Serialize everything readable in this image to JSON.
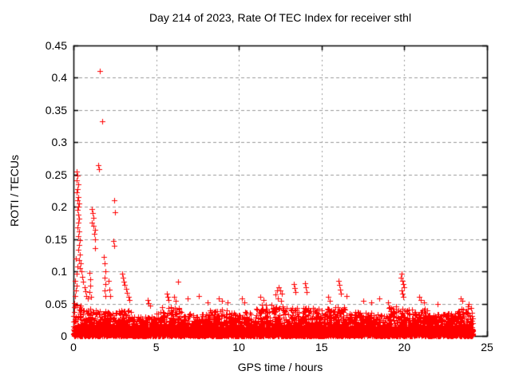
{
  "chart_data": {
    "type": "scatter",
    "title": "Day 214 of 2023, Rate Of TEC Index for receiver sthl",
    "xlabel": "GPS time / hours",
    "ylabel": "ROTI / TECUs",
    "xlim": [
      0,
      25
    ],
    "ylim": [
      0,
      0.45
    ],
    "grid": "dashed",
    "legend": "none",
    "grid_color": "#999999",
    "border_color": "#000000",
    "marker": {
      "shape": "plus",
      "color": "#ff0000",
      "size": 7
    },
    "xticks": {
      "values": [
        0,
        5,
        10,
        15,
        20,
        25
      ],
      "labels": [
        "0",
        "5",
        "10",
        "15",
        "20",
        "25"
      ]
    },
    "yticks": {
      "values": [
        0,
        0.05,
        0.1,
        0.15,
        0.2,
        0.25,
        0.3,
        0.35,
        0.4,
        0.45
      ],
      "labels": [
        "0",
        "0.05",
        "0.1",
        "0.15",
        "0.2",
        "0.25",
        "0.3",
        "0.35",
        "0.4",
        "0.45"
      ]
    },
    "series_name": "ROTI",
    "x_data_end": 24.15,
    "outlier_points": [
      [
        0.2,
        0.255
      ],
      [
        0.25,
        0.248
      ],
      [
        0.18,
        0.241
      ],
      [
        0.3,
        0.235
      ],
      [
        0.24,
        0.228
      ],
      [
        0.2,
        0.222
      ],
      [
        0.3,
        0.215
      ],
      [
        0.26,
        0.21
      ],
      [
        0.35,
        0.205
      ],
      [
        0.3,
        0.2
      ],
      [
        0.25,
        0.195
      ],
      [
        0.31,
        0.188
      ],
      [
        0.36,
        0.182
      ],
      [
        0.3,
        0.175
      ],
      [
        0.26,
        0.168
      ],
      [
        0.35,
        0.162
      ],
      [
        0.3,
        0.155
      ],
      [
        0.4,
        0.148
      ],
      [
        0.36,
        0.141
      ],
      [
        0.31,
        0.133
      ],
      [
        0.4,
        0.126
      ],
      [
        0.36,
        0.118
      ],
      [
        0.45,
        0.112
      ],
      [
        0.41,
        0.105
      ],
      [
        0.5,
        0.1
      ],
      [
        0.55,
        0.092
      ],
      [
        0.6,
        0.084
      ],
      [
        0.66,
        0.076
      ],
      [
        0.71,
        0.069
      ],
      [
        0.76,
        0.062
      ],
      [
        0.85,
        0.058
      ],
      [
        0.15,
        0.12
      ],
      [
        0.22,
        0.108
      ],
      [
        0.18,
        0.096
      ],
      [
        0.12,
        0.085
      ],
      [
        0.2,
        0.078
      ],
      [
        0.15,
        0.07
      ],
      [
        0.1,
        0.062
      ],
      [
        0.95,
        0.098
      ],
      [
        1.0,
        0.088
      ],
      [
        1.02,
        0.078
      ],
      [
        0.98,
        0.068
      ],
      [
        1.05,
        0.06
      ],
      [
        1.1,
        0.197
      ],
      [
        1.15,
        0.19
      ],
      [
        1.2,
        0.183
      ],
      [
        1.12,
        0.176
      ],
      [
        1.22,
        0.17
      ],
      [
        1.3,
        0.165
      ],
      [
        1.25,
        0.158
      ],
      [
        1.3,
        0.15
      ],
      [
        1.28,
        0.136
      ],
      [
        1.6,
        0.41
      ],
      [
        1.75,
        0.333
      ],
      [
        1.5,
        0.265
      ],
      [
        1.55,
        0.258
      ],
      [
        2.45,
        0.21
      ],
      [
        2.5,
        0.192
      ],
      [
        2.4,
        0.147
      ],
      [
        2.48,
        0.14
      ],
      [
        1.85,
        0.122
      ],
      [
        1.9,
        0.112
      ],
      [
        1.92,
        0.1
      ],
      [
        1.88,
        0.09
      ],
      [
        1.95,
        0.08
      ],
      [
        1.9,
        0.07
      ],
      [
        1.95,
        0.062
      ],
      [
        2.1,
        0.085
      ],
      [
        2.15,
        0.072
      ],
      [
        2.2,
        0.062
      ],
      [
        2.95,
        0.096
      ],
      [
        3.0,
        0.09
      ],
      [
        3.05,
        0.084
      ],
      [
        3.1,
        0.079
      ],
      [
        3.18,
        0.073
      ],
      [
        3.25,
        0.067
      ],
      [
        3.32,
        0.061
      ],
      [
        3.4,
        0.056
      ],
      [
        4.5,
        0.056
      ],
      [
        4.56,
        0.051
      ],
      [
        4.62,
        0.047
      ],
      [
        5.65,
        0.066
      ],
      [
        5.7,
        0.061
      ],
      [
        5.76,
        0.056
      ],
      [
        6.3,
        0.084
      ],
      [
        6.1,
        0.06
      ],
      [
        6.2,
        0.055
      ],
      [
        6.9,
        0.058
      ],
      [
        7.6,
        0.062
      ],
      [
        8.1,
        0.052
      ],
      [
        8.8,
        0.058
      ],
      [
        9.0,
        0.055
      ],
      [
        9.3,
        0.052
      ],
      [
        10.2,
        0.058
      ],
      [
        10.35,
        0.052
      ],
      [
        11.3,
        0.06
      ],
      [
        11.5,
        0.056
      ],
      [
        12.2,
        0.064
      ],
      [
        12.3,
        0.07
      ],
      [
        12.4,
        0.075
      ],
      [
        12.5,
        0.07
      ],
      [
        12.6,
        0.065
      ],
      [
        12.35,
        0.058
      ],
      [
        12.55,
        0.055
      ],
      [
        13.3,
        0.08
      ],
      [
        13.35,
        0.074
      ],
      [
        13.42,
        0.068
      ],
      [
        14.0,
        0.082
      ],
      [
        14.05,
        0.075
      ],
      [
        14.1,
        0.068
      ],
      [
        15.4,
        0.06
      ],
      [
        15.5,
        0.055
      ],
      [
        16.0,
        0.085
      ],
      [
        16.05,
        0.079
      ],
      [
        16.1,
        0.072
      ],
      [
        16.15,
        0.066
      ],
      [
        16.5,
        0.062
      ],
      [
        17.5,
        0.055
      ],
      [
        18.0,
        0.052
      ],
      [
        18.5,
        0.058
      ],
      [
        19.0,
        0.052
      ],
      [
        19.8,
        0.09
      ],
      [
        19.85,
        0.096
      ],
      [
        19.88,
        0.085
      ],
      [
        19.92,
        0.08
      ],
      [
        19.96,
        0.075
      ],
      [
        19.82,
        0.07
      ],
      [
        19.9,
        0.065
      ],
      [
        19.95,
        0.06
      ],
      [
        20.9,
        0.06
      ],
      [
        21.0,
        0.056
      ],
      [
        21.2,
        0.052
      ],
      [
        22.0,
        0.05
      ],
      [
        23.4,
        0.058
      ],
      [
        23.5,
        0.055
      ],
      [
        23.9,
        0.05
      ]
    ],
    "noise_band": {
      "seed": 42,
      "x_step": 0.012,
      "description": "dense low-level ROTI noise; segments are [x_start, x_end, typical_top_TECUs]",
      "segments": [
        [
          0.0,
          0.5,
          0.055
        ],
        [
          0.5,
          1.5,
          0.042
        ],
        [
          1.5,
          3.5,
          0.04
        ],
        [
          3.5,
          5.0,
          0.032
        ],
        [
          5.0,
          6.5,
          0.045
        ],
        [
          6.5,
          8.0,
          0.035
        ],
        [
          8.0,
          9.5,
          0.042
        ],
        [
          9.5,
          11.0,
          0.038
        ],
        [
          11.0,
          13.5,
          0.048
        ],
        [
          13.5,
          16.5,
          0.045
        ],
        [
          16.5,
          19.0,
          0.038
        ],
        [
          19.0,
          20.3,
          0.046
        ],
        [
          20.3,
          21.5,
          0.042
        ],
        [
          21.5,
          23.2,
          0.036
        ],
        [
          23.2,
          24.15,
          0.046
        ]
      ]
    }
  }
}
